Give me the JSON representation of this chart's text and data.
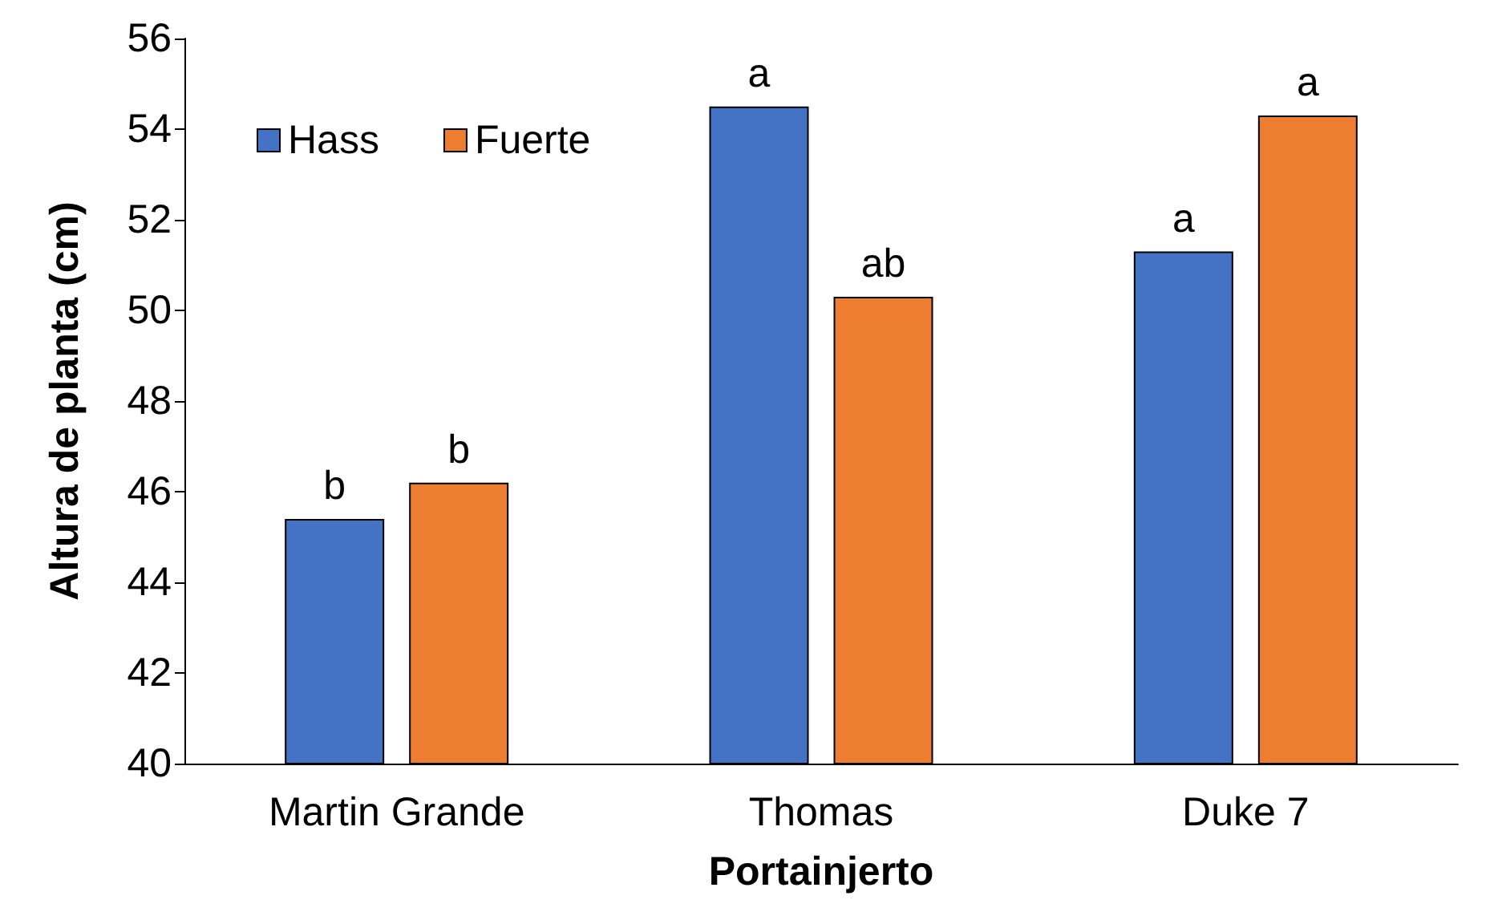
{
  "chart_data": {
    "type": "bar",
    "xlabel": "Portainjerto",
    "ylabel": "Altura de planta (cm)",
    "categories": [
      "Martin Grande",
      "Thomas",
      "Duke 7"
    ],
    "series": [
      {
        "name": "Hass",
        "color": "#4472c4",
        "values": [
          45.4,
          54.5,
          51.3
        ],
        "value_labels": [
          "b",
          "a",
          "a"
        ]
      },
      {
        "name": "Fuerte",
        "color": "#ed7d31",
        "values": [
          46.2,
          50.3,
          54.3
        ],
        "value_labels": [
          "b",
          "ab",
          "a"
        ]
      }
    ],
    "ylim": [
      40,
      56
    ],
    "yticks": [
      40,
      42,
      44,
      46,
      48,
      50,
      52,
      54,
      56
    ],
    "grid": false,
    "legend": "top left"
  }
}
